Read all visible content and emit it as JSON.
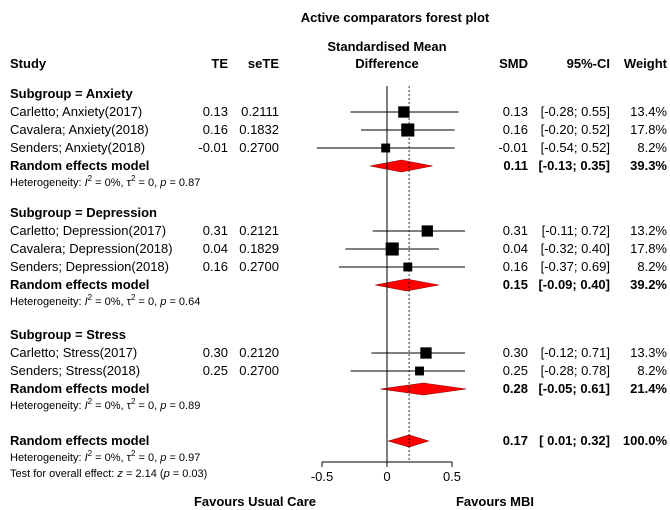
{
  "chart_data": {
    "type": "forest",
    "title": "Active comparators forest plot",
    "columns": {
      "study": "Study",
      "te": "TE",
      "sete": "seTE",
      "effect_line1": "Standardised Mean",
      "effect_line2": "Difference",
      "smd": "SMD",
      "ci": "95%-CI",
      "weight": "Weight"
    },
    "xlim": [
      -0.5,
      0.5
    ],
    "null_value": 0,
    "overall_effect_value": 0.17,
    "x_ticks": [
      {
        "value": -0.5,
        "label": "-0.5"
      },
      {
        "value": 0,
        "label": "0"
      },
      {
        "value": 0.5,
        "label": "0.5"
      }
    ],
    "favours_left": "Favours Usual Care",
    "favours_right": "Favours MBI",
    "subgroups": [
      {
        "label": "Subgroup = Anxiety",
        "studies": [
          {
            "name": "Carletto; Anxiety(2017)",
            "te": "0.13",
            "sete": "0.2111",
            "smd": 0.13,
            "lo": -0.28,
            "hi": 0.55,
            "smd_text": "0.13",
            "ci_text": "[-0.28; 0.55]",
            "weight_text": "13.4%",
            "weight": 13.4
          },
          {
            "name": "Cavalera; Anxiety(2018)",
            "te": "0.16",
            "sete": "0.1832",
            "smd": 0.16,
            "lo": -0.2,
            "hi": 0.52,
            "smd_text": "0.16",
            "ci_text": "[-0.20; 0.52]",
            "weight_text": "17.8%",
            "weight": 17.8
          },
          {
            "name": "Senders; Anxiety(2018)",
            "te": "-0.01",
            "sete": "0.2700",
            "smd": -0.01,
            "lo": -0.54,
            "hi": 0.52,
            "smd_text": "-0.01",
            "ci_text": "[-0.54; 0.52]",
            "weight_text": "8.2%",
            "weight": 8.2
          }
        ],
        "pooled": {
          "label": "Random effects model",
          "smd": 0.11,
          "lo": -0.13,
          "hi": 0.35,
          "smd_text": "0.11",
          "ci_text": "[-0.13; 0.35]",
          "weight_text": "39.3%"
        },
        "heterogeneity": {
          "prefix": "Heterogeneity: ",
          "i2": "I",
          "i2_sup": "2",
          "i2_val": " = 0%, ",
          "tau": "τ",
          "tau_sup": "2",
          "tau_val": " = 0, ",
          "p": "p",
          "p_val": " = 0.87"
        }
      },
      {
        "label": "Subgroup = Depression",
        "studies": [
          {
            "name": "Carletto; Depression(2017)",
            "te": "0.31",
            "sete": "0.2121",
            "smd": 0.31,
            "lo": -0.11,
            "hi": 0.72,
            "smd_text": "0.31",
            "ci_text": "[-0.11; 0.72]",
            "weight_text": "13.2%",
            "weight": 13.2
          },
          {
            "name": "Cavalera; Depression(2018)",
            "te": "0.04",
            "sete": "0.1829",
            "smd": 0.04,
            "lo": -0.32,
            "hi": 0.4,
            "smd_text": "0.04",
            "ci_text": "[-0.32; 0.40]",
            "weight_text": "17.8%",
            "weight": 17.8
          },
          {
            "name": "Senders; Depression(2018)",
            "te": "0.16",
            "sete": "0.2700",
            "smd": 0.16,
            "lo": -0.37,
            "hi": 0.69,
            "smd_text": "0.16",
            "ci_text": "[-0.37; 0.69]",
            "weight_text": "8.2%",
            "weight": 8.2
          }
        ],
        "pooled": {
          "label": "Random effects model",
          "smd": 0.15,
          "lo": -0.09,
          "hi": 0.4,
          "smd_text": "0.15",
          "ci_text": "[-0.09; 0.40]",
          "weight_text": "39.2%"
        },
        "heterogeneity": {
          "prefix": "Heterogeneity: ",
          "i2": "I",
          "i2_sup": "2",
          "i2_val": " = 0%, ",
          "tau": "τ",
          "tau_sup": "2",
          "tau_val": " = 0, ",
          "p": "p",
          "p_val": " = 0.64"
        }
      },
      {
        "label": "Subgroup = Stress",
        "studies": [
          {
            "name": "Carletto; Stress(2017)",
            "te": "0.30",
            "sete": "0.2120",
            "smd": 0.3,
            "lo": -0.12,
            "hi": 0.71,
            "smd_text": "0.30",
            "ci_text": "[-0.12; 0.71]",
            "weight_text": "13.3%",
            "weight": 13.3
          },
          {
            "name": "Senders; Stress(2018)",
            "te": "0.25",
            "sete": "0.2700",
            "smd": 0.25,
            "lo": -0.28,
            "hi": 0.78,
            "smd_text": "0.25",
            "ci_text": "[-0.28; 0.78]",
            "weight_text": "8.2%",
            "weight": 8.2
          }
        ],
        "pooled": {
          "label": "Random effects model",
          "smd": 0.28,
          "lo": -0.05,
          "hi": 0.61,
          "smd_text": "0.28",
          "ci_text": "[-0.05; 0.61]",
          "weight_text": "21.4%"
        },
        "heterogeneity": {
          "prefix": "Heterogeneity: ",
          "i2": "I",
          "i2_sup": "2",
          "i2_val": " = 0%, ",
          "tau": "τ",
          "tau_sup": "2",
          "tau_val": " = 0, ",
          "p": "p",
          "p_val": " = 0.89"
        }
      }
    ],
    "overall": {
      "label": "Random effects model",
      "smd": 0.17,
      "lo": 0.01,
      "hi": 0.32,
      "smd_text": "0.17",
      "ci_text": "[ 0.01; 0.32]",
      "weight_text": "100.0%",
      "heterogeneity": {
        "prefix": "Heterogeneity: ",
        "i2": "I",
        "i2_sup": "2",
        "i2_val": " = 0%, ",
        "tau": "τ",
        "tau_sup": "2",
        "tau_val": " = 0, ",
        "p": "p",
        "p_val": " = 0.97"
      },
      "test_prefix": "Test for overall effect: ",
      "test_z": "z",
      "test_mid": " = 2.14 (",
      "test_p": "p",
      "test_end": " = 0.03)"
    },
    "colors": {
      "square": "#000000",
      "diamond": "#ff0000",
      "diamond_border": "#8b0000",
      "line": "#000000"
    }
  }
}
